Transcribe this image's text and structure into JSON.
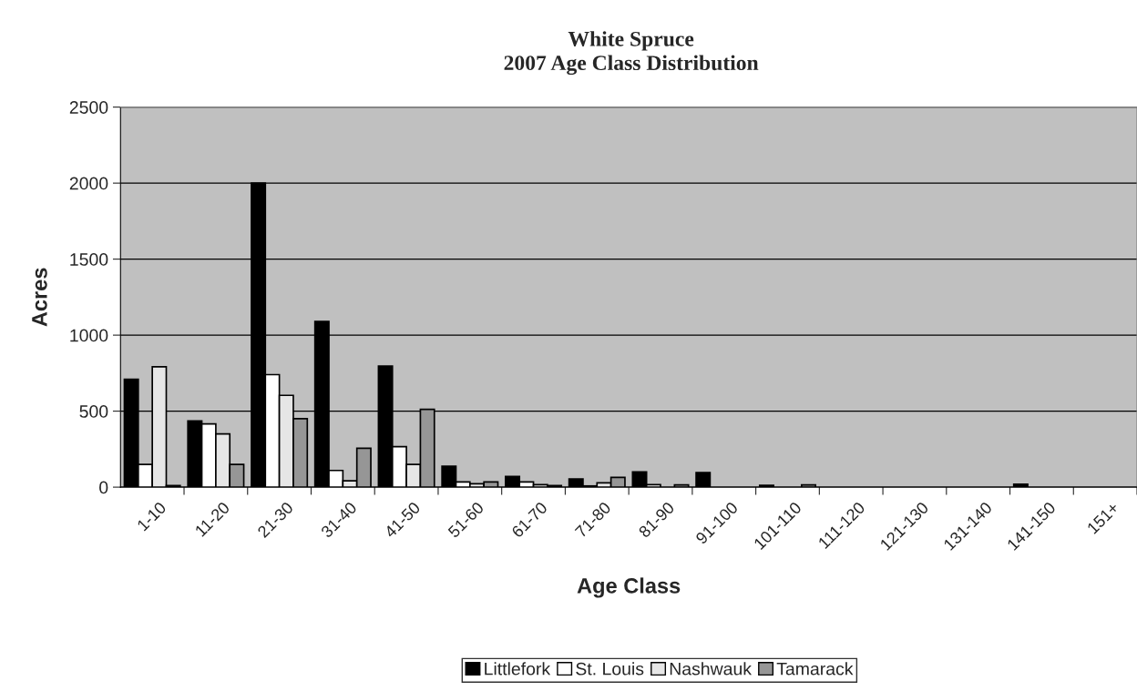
{
  "chart_data": {
    "type": "bar",
    "title": "White Spruce\n2007 Age Class Distribution",
    "xlabel": "Age Class",
    "ylabel": "Acres",
    "categories": [
      "1-10",
      "11-20",
      "21-30",
      "31-40",
      "41-50",
      "51-60",
      "61-70",
      "71-80",
      "81-90",
      "91-100",
      "101-110",
      "111-120",
      "121-130",
      "131-140",
      "141-150",
      "151+"
    ],
    "series": [
      {
        "name": "Littlefork",
        "color": "#000000",
        "values": [
          710,
          436,
          2000,
          1090,
          796,
          138,
          70,
          54,
          100,
          96,
          12,
          0,
          0,
          0,
          20,
          0
        ]
      },
      {
        "name": "St. Louis",
        "color": "#ffffff",
        "values": [
          150,
          416,
          740,
          110,
          266,
          34,
          34,
          8,
          16,
          0,
          0,
          0,
          0,
          0,
          0,
          0
        ]
      },
      {
        "name": "Nashwauk",
        "color": "#e6e6e6",
        "values": [
          792,
          350,
          604,
          42,
          150,
          22,
          16,
          28,
          0,
          0,
          0,
          0,
          0,
          0,
          0,
          0
        ]
      },
      {
        "name": "Tamarack",
        "color": "#969696",
        "values": [
          10,
          150,
          450,
          256,
          512,
          34,
          10,
          64,
          15,
          0,
          15,
          0,
          0,
          0,
          0,
          0
        ]
      }
    ],
    "ylim": [
      0,
      2500
    ],
    "yticks": [
      0,
      500,
      1000,
      1500,
      2000,
      2500
    ],
    "grid": "y",
    "legend": "bottom"
  }
}
